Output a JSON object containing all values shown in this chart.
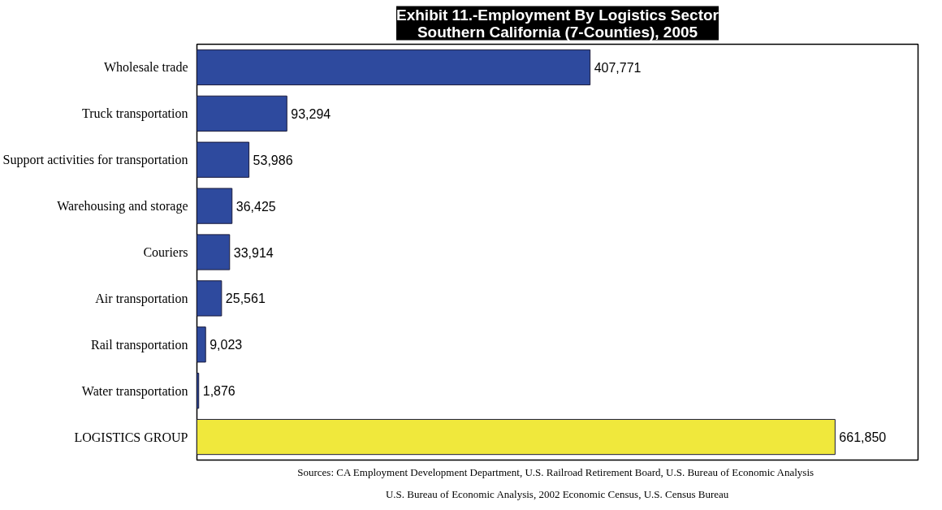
{
  "chart_data": {
    "type": "bar",
    "orientation": "horizontal",
    "title": "Exhibit 11.-Employment By Logistics Sector\nSouthern California (7-Counties), 2005",
    "categories": [
      "Wholesale trade",
      "Truck transportation",
      "Support activities for transportation",
      "Warehousing and storage",
      "Couriers",
      "Air transportation",
      "Rail transportation",
      "Water transportation",
      "LOGISTICS GROUP"
    ],
    "values": [
      407771,
      93294,
      53986,
      36425,
      33914,
      25561,
      9023,
      1876,
      661850
    ],
    "colors": [
      "#2e4a9e",
      "#2e4a9e",
      "#2e4a9e",
      "#2e4a9e",
      "#2e4a9e",
      "#2e4a9e",
      "#2e4a9e",
      "#2e4a9e",
      "#f0e83c"
    ],
    "value_labels": [
      "407,771",
      "93,294",
      "53,986",
      "36,425",
      "33,914",
      "25,561",
      "9,023",
      "1,876",
      "661,850"
    ],
    "grid": false,
    "annotations": [
      "Sources:  CA Employment Development Department, U.S. Railroad Retirement Board, U.S. Bureau of Economic Analysis",
      "U.S. Bureau of Economic Analysis, 2002 Economic Census, U.S. Census Bureau"
    ]
  }
}
